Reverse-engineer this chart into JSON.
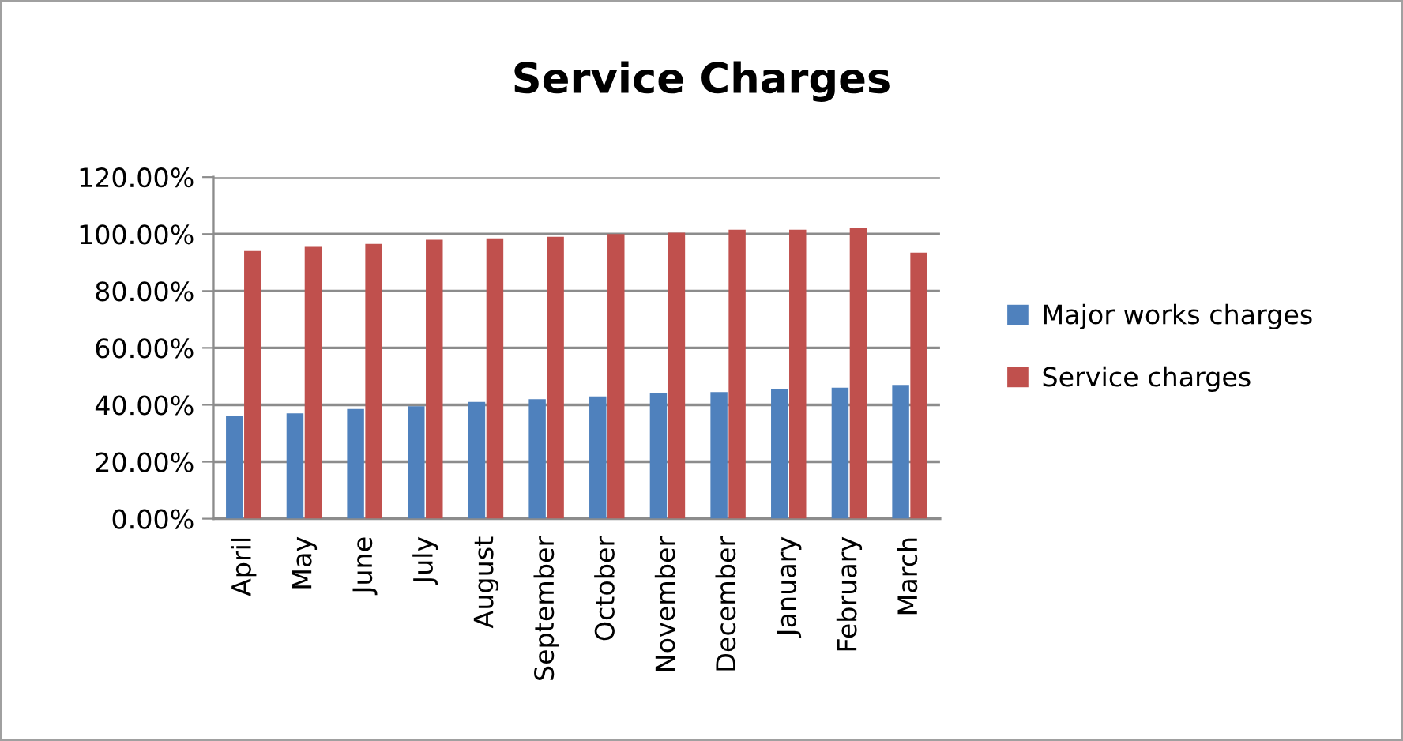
{
  "chart_data": {
    "type": "bar",
    "title": "Service Charges",
    "categories": [
      "April",
      "May",
      "June",
      "July",
      "August",
      "September",
      "October",
      "November",
      "December",
      "January",
      "February",
      "March"
    ],
    "series": [
      {
        "name": "Major works charges",
        "color": "#4f81bd",
        "values": [
          36,
          37,
          38.5,
          39.5,
          41,
          42,
          43,
          44,
          44.5,
          45.5,
          46,
          47
        ]
      },
      {
        "name": "Service charges",
        "color": "#c0504d",
        "values": [
          94,
          95.5,
          96.5,
          98,
          98.5,
          99,
          100,
          100.5,
          101.5,
          101.5,
          102,
          93.5
        ]
      }
    ],
    "ylim": [
      0,
      120
    ],
    "yticks": [
      {
        "value": 0,
        "label": "0.00%"
      },
      {
        "value": 20,
        "label": "20.00%"
      },
      {
        "value": 40,
        "label": "40.00%"
      },
      {
        "value": 60,
        "label": "60.00%"
      },
      {
        "value": 80,
        "label": "80.00%"
      },
      {
        "value": 100,
        "label": "100.00%"
      },
      {
        "value": 120,
        "label": "120.00%"
      }
    ],
    "grid": "y",
    "legend": "right"
  }
}
